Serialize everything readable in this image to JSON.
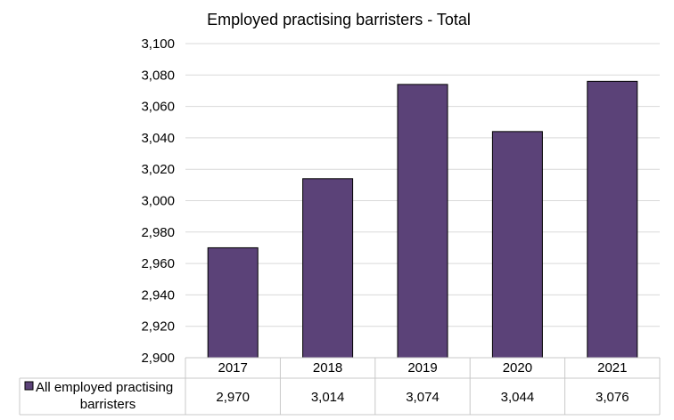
{
  "chart_data": {
    "type": "bar",
    "title": "Employed practising barristers - Total",
    "categories": [
      "2017",
      "2018",
      "2019",
      "2020",
      "2021"
    ],
    "series": [
      {
        "name": "All employed practising barristers",
        "values": [
          2970,
          3014,
          3074,
          3044,
          3076
        ],
        "value_labels": [
          "2,970",
          "3,014",
          "3,074",
          "3,044",
          "3,076"
        ],
        "color": "#5b4278"
      }
    ],
    "ylim": [
      2900,
      3100
    ],
    "yticks": [
      2900,
      2920,
      2940,
      2960,
      2980,
      3000,
      3020,
      3040,
      3060,
      3080,
      3100
    ],
    "ytick_labels": [
      "2,900",
      "2,920",
      "2,940",
      "2,960",
      "2,980",
      "3,000",
      "3,020",
      "3,040",
      "3,060",
      "3,080",
      "3,100"
    ],
    "legend_line1": "All employed practising",
    "legend_line2": "barristers",
    "grid": true,
    "legend": "data-table"
  }
}
